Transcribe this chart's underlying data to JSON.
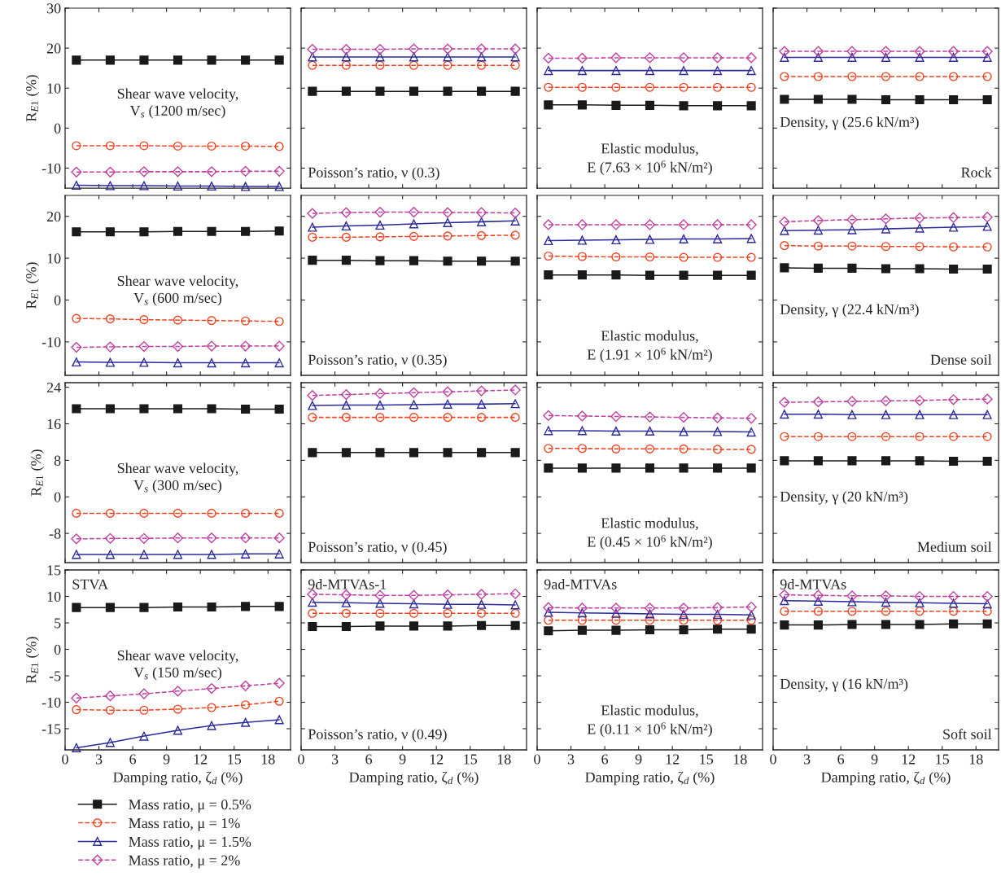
{
  "chart_data": [
    {
      "type": "line",
      "x": [
        1,
        4,
        7,
        10,
        13,
        16,
        19
      ],
      "xlim": [
        0,
        20
      ],
      "xticks": [
        0,
        3,
        6,
        9,
        12,
        15,
        18
      ],
      "ylim": [
        -15,
        30
      ],
      "yticks": [
        -10,
        0,
        10,
        20,
        30
      ],
      "ylabel": "R$_{E1}$ (%)",
      "tick_labels": "y",
      "annotations": [
        "Shear wave velocity,\nV$_{s}$ (1200 m/sec)"
      ],
      "series": [
        {
          "color": "#1a1a1a",
          "marker": "square",
          "line_style": "solid",
          "values": [
            17,
            17,
            17,
            17,
            17,
            17,
            17
          ]
        },
        {
          "color": "#ee4422",
          "marker": "circle",
          "line_style": "dashed",
          "values": [
            -4.4,
            -4.4,
            -4.4,
            -4.5,
            -4.5,
            -4.5,
            -4.6
          ]
        },
        {
          "color": "#2b2b9a",
          "marker": "triangle",
          "line_style": "solid",
          "values": [
            -14.3,
            -14.4,
            -14.4,
            -14.5,
            -14.5,
            -14.6,
            -14.6
          ]
        },
        {
          "color": "#c040a0",
          "marker": "diamond",
          "line_style": "dashed",
          "values": [
            -11,
            -11,
            -10.9,
            -10.9,
            -10.9,
            -10.8,
            -10.8
          ]
        }
      ]
    },
    {
      "type": "line",
      "x": [
        1,
        4,
        7,
        10,
        13,
        16,
        19
      ],
      "xlim": [
        0,
        20
      ],
      "xticks": [
        0,
        3,
        6,
        9,
        12,
        15,
        18
      ],
      "ylim": [
        -15,
        30
      ],
      "yticks": [
        -10,
        0,
        10,
        20,
        30
      ],
      "tick_labels": false,
      "annotations": [
        "Poisson’s ratio, ν (0.3)"
      ],
      "series": [
        {
          "color": "#1a1a1a",
          "marker": "square",
          "line_style": "solid",
          "values": [
            9.2,
            9.2,
            9.2,
            9.2,
            9.2,
            9.2,
            9.2
          ]
        },
        {
          "color": "#ee4422",
          "marker": "circle",
          "line_style": "dashed",
          "values": [
            15.7,
            15.7,
            15.7,
            15.7,
            15.7,
            15.7,
            15.7
          ]
        },
        {
          "color": "#2b2b9a",
          "marker": "triangle",
          "line_style": "solid",
          "values": [
            17.8,
            17.8,
            17.8,
            17.8,
            17.8,
            17.8,
            17.8
          ]
        },
        {
          "color": "#c040a0",
          "marker": "diamond",
          "line_style": "dashed",
          "values": [
            19.7,
            19.7,
            19.7,
            19.8,
            19.8,
            19.8,
            19.8
          ]
        }
      ]
    },
    {
      "type": "line",
      "x": [
        1,
        4,
        7,
        10,
        13,
        16,
        19
      ],
      "xlim": [
        0,
        20
      ],
      "xticks": [
        0,
        3,
        6,
        9,
        12,
        15,
        18
      ],
      "ylim": [
        -15,
        30
      ],
      "yticks": [
        -10,
        0,
        10,
        20,
        30
      ],
      "tick_labels": false,
      "annotations": [
        "Elastic modulus,\nE (7.63 × 10$^{6}$ kN/m²)"
      ],
      "series": [
        {
          "color": "#1a1a1a",
          "marker": "square",
          "line_style": "solid",
          "values": [
            5.8,
            5.8,
            5.7,
            5.7,
            5.6,
            5.6,
            5.6
          ]
        },
        {
          "color": "#ee4422",
          "marker": "circle",
          "line_style": "dashed",
          "values": [
            10.2,
            10.2,
            10.2,
            10.2,
            10.2,
            10.2,
            10.2
          ]
        },
        {
          "color": "#2b2b9a",
          "marker": "triangle",
          "line_style": "solid",
          "values": [
            14.4,
            14.4,
            14.4,
            14.4,
            14.4,
            14.4,
            14.4
          ]
        },
        {
          "color": "#c040a0",
          "marker": "diamond",
          "line_style": "dashed",
          "values": [
            17.5,
            17.5,
            17.6,
            17.6,
            17.6,
            17.6,
            17.6
          ]
        }
      ]
    },
    {
      "type": "line",
      "x": [
        1,
        4,
        7,
        10,
        13,
        16,
        19
      ],
      "xlim": [
        0,
        20
      ],
      "xticks": [
        0,
        3,
        6,
        9,
        12,
        15,
        18
      ],
      "ylim": [
        -15,
        30
      ],
      "yticks": [
        -10,
        0,
        10,
        20,
        30
      ],
      "tick_labels": false,
      "annotations": [
        "Density, γ (25.6 kN/m³)",
        "Rock"
      ],
      "series": [
        {
          "color": "#1a1a1a",
          "marker": "square",
          "line_style": "solid",
          "values": [
            7.2,
            7.2,
            7.2,
            7.1,
            7.1,
            7.1,
            7.1
          ]
        },
        {
          "color": "#ee4422",
          "marker": "circle",
          "line_style": "dashed",
          "values": [
            12.9,
            12.9,
            12.9,
            12.9,
            12.9,
            12.9,
            12.9
          ]
        },
        {
          "color": "#2b2b9a",
          "marker": "triangle",
          "line_style": "solid",
          "values": [
            17.7,
            17.7,
            17.7,
            17.7,
            17.7,
            17.7,
            17.7
          ]
        },
        {
          "color": "#c040a0",
          "marker": "diamond",
          "line_style": "dashed",
          "values": [
            19.2,
            19.2,
            19.2,
            19.2,
            19.2,
            19.2,
            19.2
          ]
        }
      ]
    },
    {
      "type": "line",
      "x": [
        1,
        4,
        7,
        10,
        13,
        16,
        19
      ],
      "xlim": [
        0,
        20
      ],
      "xticks": [
        0,
        3,
        6,
        9,
        12,
        15,
        18
      ],
      "ylim": [
        -18,
        25
      ],
      "yticks": [
        -10,
        0,
        10,
        20
      ],
      "ylabel": "R$_{E1}$ (%)",
      "tick_labels": "y",
      "annotations": [
        "Shear wave velocity,\nV$_{s}$ (600 m/sec)"
      ],
      "series": [
        {
          "color": "#1a1a1a",
          "marker": "square",
          "line_style": "solid",
          "values": [
            16.3,
            16.3,
            16.3,
            16.4,
            16.4,
            16.4,
            16.5
          ]
        },
        {
          "color": "#ee4422",
          "marker": "circle",
          "line_style": "dashed",
          "values": [
            -4.4,
            -4.5,
            -4.7,
            -4.8,
            -4.9,
            -5,
            -5.1
          ]
        },
        {
          "color": "#2b2b9a",
          "marker": "triangle",
          "line_style": "solid",
          "values": [
            -14.8,
            -14.9,
            -14.9,
            -15,
            -15,
            -15,
            -15
          ]
        },
        {
          "color": "#c040a0",
          "marker": "diamond",
          "line_style": "dashed",
          "values": [
            -11.3,
            -11.2,
            -11.1,
            -11.1,
            -11,
            -11,
            -11
          ]
        }
      ]
    },
    {
      "type": "line",
      "x": [
        1,
        4,
        7,
        10,
        13,
        16,
        19
      ],
      "xlim": [
        0,
        20
      ],
      "xticks": [
        0,
        3,
        6,
        9,
        12,
        15,
        18
      ],
      "ylim": [
        -18,
        25
      ],
      "yticks": [
        -10,
        0,
        10,
        20
      ],
      "tick_labels": false,
      "annotations": [
        "Poisson’s ratio, ν (0.35)"
      ],
      "series": [
        {
          "color": "#1a1a1a",
          "marker": "square",
          "line_style": "solid",
          "values": [
            9.5,
            9.5,
            9.4,
            9.4,
            9.3,
            9.3,
            9.3
          ]
        },
        {
          "color": "#ee4422",
          "marker": "circle",
          "line_style": "dashed",
          "values": [
            15,
            15,
            15.1,
            15.2,
            15.3,
            15.4,
            15.5
          ]
        },
        {
          "color": "#2b2b9a",
          "marker": "triangle",
          "line_style": "solid",
          "values": [
            17.4,
            17.7,
            17.9,
            18.2,
            18.5,
            18.7,
            18.9
          ]
        },
        {
          "color": "#c040a0",
          "marker": "diamond",
          "line_style": "dashed",
          "values": [
            20.7,
            20.9,
            21,
            21,
            20.9,
            20.9,
            20.8
          ]
        }
      ]
    },
    {
      "type": "line",
      "x": [
        1,
        4,
        7,
        10,
        13,
        16,
        19
      ],
      "xlim": [
        0,
        20
      ],
      "xticks": [
        0,
        3,
        6,
        9,
        12,
        15,
        18
      ],
      "ylim": [
        -18,
        25
      ],
      "yticks": [
        -10,
        0,
        10,
        20
      ],
      "tick_labels": false,
      "annotations": [
        "Elastic modulus,\nE (1.91 × 10$^{6}$ kN/m²)"
      ],
      "series": [
        {
          "color": "#1a1a1a",
          "marker": "square",
          "line_style": "solid",
          "values": [
            6,
            6,
            6,
            5.9,
            5.9,
            5.9,
            5.9
          ]
        },
        {
          "color": "#ee4422",
          "marker": "circle",
          "line_style": "dashed",
          "values": [
            10.5,
            10.4,
            10.3,
            10.3,
            10.2,
            10.2,
            10.2
          ]
        },
        {
          "color": "#2b2b9a",
          "marker": "triangle",
          "line_style": "solid",
          "values": [
            14.2,
            14.3,
            14.4,
            14.5,
            14.6,
            14.6,
            14.7
          ]
        },
        {
          "color": "#c040a0",
          "marker": "diamond",
          "line_style": "dashed",
          "values": [
            18,
            18,
            18,
            18,
            18,
            18,
            18
          ]
        }
      ]
    },
    {
      "type": "line",
      "x": [
        1,
        4,
        7,
        10,
        13,
        16,
        19
      ],
      "xlim": [
        0,
        20
      ],
      "xticks": [
        0,
        3,
        6,
        9,
        12,
        15,
        18
      ],
      "ylim": [
        -18,
        25
      ],
      "yticks": [
        -10,
        0,
        10,
        20
      ],
      "tick_labels": false,
      "annotations": [
        "Density, γ (22.4 kN/m³)",
        "Dense soil"
      ],
      "series": [
        {
          "color": "#1a1a1a",
          "marker": "square",
          "line_style": "solid",
          "values": [
            7.7,
            7.6,
            7.6,
            7.5,
            7.5,
            7.4,
            7.4
          ]
        },
        {
          "color": "#ee4422",
          "marker": "circle",
          "line_style": "dashed",
          "values": [
            13,
            12.9,
            12.9,
            12.8,
            12.8,
            12.7,
            12.7
          ]
        },
        {
          "color": "#2b2b9a",
          "marker": "triangle",
          "line_style": "solid",
          "values": [
            16.6,
            16.7,
            16.8,
            17,
            17.2,
            17.4,
            17.6
          ]
        },
        {
          "color": "#c040a0",
          "marker": "diamond",
          "line_style": "dashed",
          "values": [
            18.7,
            19,
            19.2,
            19.4,
            19.6,
            19.7,
            19.8
          ]
        }
      ]
    },
    {
      "type": "line",
      "x": [
        1,
        4,
        7,
        10,
        13,
        16,
        19
      ],
      "xlim": [
        0,
        20
      ],
      "xticks": [
        0,
        3,
        6,
        9,
        12,
        15,
        18
      ],
      "ylim": [
        -14.4,
        25
      ],
      "yticks": [
        -8,
        0,
        8,
        16,
        24
      ],
      "ylabel": "R$_{E1}$ (%)",
      "tick_labels": "y",
      "annotations": [
        "Shear wave velocity,\nV$_{s}$ (300 m/sec)"
      ],
      "series": [
        {
          "color": "#1a1a1a",
          "marker": "square",
          "line_style": "solid",
          "values": [
            19.3,
            19.3,
            19.3,
            19.3,
            19.3,
            19.2,
            19.2
          ]
        },
        {
          "color": "#ee4422",
          "marker": "circle",
          "line_style": "dashed",
          "values": [
            -3.6,
            -3.6,
            -3.6,
            -3.6,
            -3.6,
            -3.6,
            -3.6
          ]
        },
        {
          "color": "#2b2b9a",
          "marker": "triangle",
          "line_style": "solid",
          "values": [
            -12.6,
            -12.6,
            -12.6,
            -12.6,
            -12.6,
            -12.5,
            -12.5
          ]
        },
        {
          "color": "#c040a0",
          "marker": "diamond",
          "line_style": "dashed",
          "values": [
            -9.2,
            -9.1,
            -9.1,
            -9,
            -9,
            -9,
            -9
          ]
        }
      ]
    },
    {
      "type": "line",
      "x": [
        1,
        4,
        7,
        10,
        13,
        16,
        19
      ],
      "xlim": [
        0,
        20
      ],
      "xticks": [
        0,
        3,
        6,
        9,
        12,
        15,
        18
      ],
      "ylim": [
        -14.4,
        25
      ],
      "yticks": [
        -8,
        0,
        8,
        16,
        24
      ],
      "tick_labels": false,
      "annotations": [
        "Poisson’s ratio, ν (0.45)"
      ],
      "series": [
        {
          "color": "#1a1a1a",
          "marker": "square",
          "line_style": "solid",
          "values": [
            9.7,
            9.7,
            9.7,
            9.7,
            9.7,
            9.7,
            9.7
          ]
        },
        {
          "color": "#ee4422",
          "marker": "circle",
          "line_style": "dashed",
          "values": [
            17.4,
            17.4,
            17.4,
            17.4,
            17.4,
            17.4,
            17.4
          ]
        },
        {
          "color": "#2b2b9a",
          "marker": "triangle",
          "line_style": "solid",
          "values": [
            20,
            20.1,
            20.1,
            20.2,
            20.3,
            20.3,
            20.4
          ]
        },
        {
          "color": "#c040a0",
          "marker": "diamond",
          "line_style": "dashed",
          "values": [
            22.2,
            22.4,
            22.6,
            22.8,
            23,
            23.2,
            23.4
          ]
        }
      ]
    },
    {
      "type": "line",
      "x": [
        1,
        4,
        7,
        10,
        13,
        16,
        19
      ],
      "xlim": [
        0,
        20
      ],
      "xticks": [
        0,
        3,
        6,
        9,
        12,
        15,
        18
      ],
      "ylim": [
        -14.4,
        25
      ],
      "yticks": [
        -8,
        0,
        8,
        16,
        24
      ],
      "tick_labels": false,
      "annotations": [
        "Elastic modulus,\nE (0.45 × 10$^{6}$ kN/m²)"
      ],
      "series": [
        {
          "color": "#1a1a1a",
          "marker": "square",
          "line_style": "solid",
          "values": [
            6.3,
            6.3,
            6.3,
            6.3,
            6.3,
            6.3,
            6.3
          ]
        },
        {
          "color": "#ee4422",
          "marker": "circle",
          "line_style": "dashed",
          "values": [
            10.6,
            10.6,
            10.5,
            10.5,
            10.5,
            10.4,
            10.4
          ]
        },
        {
          "color": "#2b2b9a",
          "marker": "triangle",
          "line_style": "solid",
          "values": [
            14.5,
            14.5,
            14.4,
            14.4,
            14.3,
            14.3,
            14.2
          ]
        },
        {
          "color": "#c040a0",
          "marker": "diamond",
          "line_style": "dashed",
          "values": [
            17.8,
            17.7,
            17.6,
            17.5,
            17.4,
            17.3,
            17.2
          ]
        }
      ]
    },
    {
      "type": "line",
      "x": [
        1,
        4,
        7,
        10,
        13,
        16,
        19
      ],
      "xlim": [
        0,
        20
      ],
      "xticks": [
        0,
        3,
        6,
        9,
        12,
        15,
        18
      ],
      "ylim": [
        -14.4,
        25
      ],
      "yticks": [
        -8,
        0,
        8,
        16,
        24
      ],
      "tick_labels": false,
      "annotations": [
        "Density, γ (20 kN/m³)",
        "Medium soil"
      ],
      "series": [
        {
          "color": "#1a1a1a",
          "marker": "square",
          "line_style": "solid",
          "values": [
            7.9,
            7.9,
            7.9,
            7.9,
            7.9,
            7.8,
            7.8
          ]
        },
        {
          "color": "#ee4422",
          "marker": "circle",
          "line_style": "dashed",
          "values": [
            13.2,
            13.2,
            13.2,
            13.2,
            13.2,
            13.2,
            13.2
          ]
        },
        {
          "color": "#2b2b9a",
          "marker": "triangle",
          "line_style": "solid",
          "values": [
            18.1,
            18.1,
            18,
            18,
            18,
            18,
            18
          ]
        },
        {
          "color": "#c040a0",
          "marker": "diamond",
          "line_style": "dashed",
          "values": [
            20.7,
            20.8,
            20.9,
            21,
            21.1,
            21.3,
            21.4
          ]
        }
      ]
    },
    {
      "type": "line",
      "x": [
        1,
        4,
        7,
        10,
        13,
        16,
        19
      ],
      "xlim": [
        0,
        20
      ],
      "xticks": [
        0,
        3,
        6,
        9,
        12,
        15,
        18
      ],
      "ylim": [
        -19,
        15
      ],
      "yticks": [
        -15,
        -10,
        -5,
        0,
        5,
        10,
        15
      ],
      "ylabel": "R$_{E1}$ (%)",
      "xlabel": "Damping ratio, ζ$_{d}$ (%)",
      "legend": "bottom",
      "annotations": [
        "STVA",
        "Shear wave velocity,\nV$_{s}$ (150 m/sec)"
      ],
      "series": [
        {
          "name": "Mass ratio, μ = 0.5%",
          "color": "#1a1a1a",
          "marker": "square",
          "line_style": "solid",
          "values": [
            7.9,
            7.9,
            7.9,
            8,
            8,
            8.1,
            8.1
          ]
        },
        {
          "name": "Mass ratio, μ = 1%",
          "color": "#ee4422",
          "marker": "circle",
          "line_style": "dashed",
          "values": [
            -11.4,
            -11.5,
            -11.5,
            -11.3,
            -11,
            -10.5,
            -9.8
          ]
        },
        {
          "name": "Mass ratio, μ = 1.5%",
          "color": "#2b2b9a",
          "marker": "triangle",
          "line_style": "solid",
          "values": [
            -18.6,
            -17.6,
            -16.4,
            -15.3,
            -14.4,
            -13.8,
            -13.3
          ]
        },
        {
          "name": "Mass ratio, μ = 2%",
          "color": "#c040a0",
          "marker": "diamond",
          "line_style": "dashed",
          "values": [
            -9.2,
            -8.8,
            -8.4,
            -7.9,
            -7.4,
            -6.9,
            -6.4
          ]
        }
      ]
    },
    {
      "type": "line",
      "x": [
        1,
        4,
        7,
        10,
        13,
        16,
        19
      ],
      "xlim": [
        0,
        20
      ],
      "xticks": [
        0,
        3,
        6,
        9,
        12,
        15,
        18
      ],
      "ylim": [
        -19,
        15
      ],
      "yticks": [
        -15,
        -10,
        -5,
        0,
        5,
        10,
        15
      ],
      "xlabel": "Damping ratio, ζ$_{d}$ (%)",
      "tick_labels": "x",
      "annotations": [
        "9d-MTVAs-1",
        "Poisson’s ratio, ν (0.49)"
      ],
      "series": [
        {
          "color": "#1a1a1a",
          "marker": "square",
          "line_style": "solid",
          "values": [
            4.3,
            4.3,
            4.4,
            4.4,
            4.4,
            4.5,
            4.5
          ]
        },
        {
          "color": "#ee4422",
          "marker": "circle",
          "line_style": "dashed",
          "values": [
            6.8,
            6.8,
            6.8,
            6.8,
            6.8,
            6.8,
            6.8
          ]
        },
        {
          "color": "#2b2b9a",
          "marker": "triangle",
          "line_style": "solid",
          "values": [
            8.9,
            8.8,
            8.7,
            8.6,
            8.5,
            8.5,
            8.4
          ]
        },
        {
          "color": "#c040a0",
          "marker": "diamond",
          "line_style": "dashed",
          "values": [
            10.4,
            10.3,
            10.2,
            10.2,
            10.3,
            10.4,
            10.5
          ]
        }
      ]
    },
    {
      "type": "line",
      "x": [
        1,
        4,
        7,
        10,
        13,
        16,
        19
      ],
      "xlim": [
        0,
        20
      ],
      "xticks": [
        0,
        3,
        6,
        9,
        12,
        15,
        18
      ],
      "ylim": [
        -19,
        15
      ],
      "yticks": [
        -15,
        -10,
        -5,
        0,
        5,
        10,
        15
      ],
      "xlabel": "Damping ratio, ζ$_{d}$ (%)",
      "tick_labels": "x",
      "annotations": [
        "9ad-MTVAs",
        "Elastic modulus,\nE (0.11 × 10$^{6}$ kN/m²)"
      ],
      "series": [
        {
          "color": "#1a1a1a",
          "marker": "square",
          "line_style": "solid",
          "values": [
            3.5,
            3.6,
            3.6,
            3.7,
            3.7,
            3.8,
            3.8
          ]
        },
        {
          "color": "#ee4422",
          "marker": "circle",
          "line_style": "dashed",
          "values": [
            5.5,
            5.5,
            5.5,
            5.5,
            5.5,
            5.5,
            5.5
          ]
        },
        {
          "color": "#2b2b9a",
          "marker": "triangle",
          "line_style": "solid",
          "values": [
            7,
            6.9,
            6.8,
            6.7,
            6.6,
            6.6,
            6.5
          ]
        },
        {
          "color": "#c040a0",
          "marker": "diamond",
          "line_style": "dashed",
          "values": [
            7.9,
            7.8,
            7.8,
            7.8,
            7.8,
            7.9,
            8
          ]
        }
      ]
    },
    {
      "type": "line",
      "x": [
        1,
        4,
        7,
        10,
        13,
        16,
        19
      ],
      "xlim": [
        0,
        20
      ],
      "xticks": [
        0,
        3,
        6,
        9,
        12,
        15,
        18
      ],
      "ylim": [
        -19,
        15
      ],
      "yticks": [
        -15,
        -10,
        -5,
        0,
        5,
        10,
        15
      ],
      "xlabel": "Damping ratio, ζ$_{d}$ (%)",
      "tick_labels": "x",
      "annotations": [
        "9d-MTVAs",
        "Density, γ (16 kN/m³)",
        "Soft soil"
      ],
      "series": [
        {
          "color": "#1a1a1a",
          "marker": "square",
          "line_style": "solid",
          "values": [
            4.6,
            4.6,
            4.7,
            4.7,
            4.7,
            4.8,
            4.8
          ]
        },
        {
          "color": "#ee4422",
          "marker": "circle",
          "line_style": "dashed",
          "values": [
            7.2,
            7.2,
            7.2,
            7.2,
            7.2,
            7.2,
            7.2
          ]
        },
        {
          "color": "#2b2b9a",
          "marker": "triangle",
          "line_style": "solid",
          "values": [
            9.2,
            9.1,
            9,
            8.9,
            8.8,
            8.7,
            8.6
          ]
        },
        {
          "color": "#c040a0",
          "marker": "diamond",
          "line_style": "dashed",
          "values": [
            10.3,
            10.2,
            10.1,
            10.1,
            10,
            10,
            10
          ]
        }
      ]
    }
  ]
}
